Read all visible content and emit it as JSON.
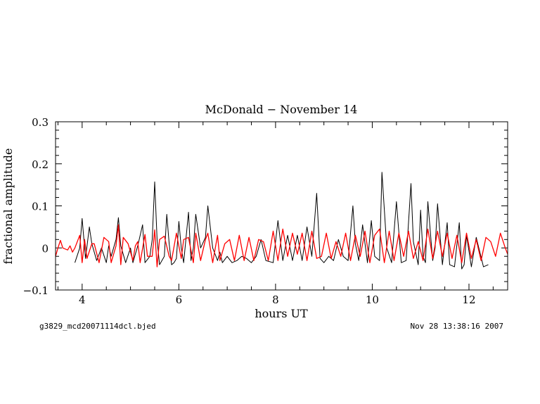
{
  "chart_data": {
    "type": "line",
    "title": "McDonald − November 14",
    "xlabel": "hours UT",
    "ylabel": "fractional amplitude",
    "xlim": [
      3.45,
      12.8
    ],
    "ylim": [
      -0.1,
      0.3
    ],
    "xticks": [
      4,
      6,
      8,
      10,
      12
    ],
    "yticks": [
      -0.1,
      0,
      0.1,
      0.2,
      0.3
    ],
    "xtick_labels": [
      "4",
      "6",
      "8",
      "10",
      "12"
    ],
    "ytick_labels": [
      "−0.1",
      "0",
      "0.1",
      "0.2",
      "0.3"
    ],
    "grid": false,
    "series": [
      {
        "color": "#000000",
        "x": [
          3.85,
          3.95,
          4.0,
          4.07,
          4.15,
          4.2,
          4.3,
          4.4,
          4.5,
          4.55,
          4.6,
          4.7,
          4.75,
          4.8,
          4.9,
          5.0,
          5.05,
          5.15,
          5.25,
          5.3,
          5.4,
          5.45,
          5.5,
          5.55,
          5.6,
          5.7,
          5.75,
          5.8,
          5.85,
          5.9,
          5.95,
          6.0,
          6.05,
          6.1,
          6.2,
          6.25,
          6.3,
          6.35,
          6.45,
          6.55,
          6.6,
          6.7,
          6.8,
          6.85,
          6.9,
          7.0,
          7.1,
          7.2,
          7.3,
          7.4,
          7.5,
          7.6,
          7.7,
          7.8,
          7.95,
          8.05,
          8.15,
          8.25,
          8.35,
          8.45,
          8.55,
          8.65,
          8.75,
          8.85,
          8.92,
          9.0,
          9.1,
          9.2,
          9.3,
          9.4,
          9.5,
          9.6,
          9.65,
          9.72,
          9.8,
          9.9,
          9.98,
          10.05,
          10.15,
          10.2,
          10.3,
          10.4,
          10.5,
          10.6,
          10.7,
          10.8,
          10.85,
          10.95,
          11.0,
          11.05,
          11.1,
          11.15,
          11.25,
          11.3,
          11.35,
          11.45,
          11.55,
          11.6,
          11.7,
          11.8,
          11.85,
          11.9,
          11.95,
          12.05,
          12.15,
          12.3,
          12.4
        ],
        "y": [
          -0.035,
          0.0,
          0.07,
          -0.025,
          0.05,
          0.01,
          -0.03,
          0.0,
          -0.035,
          0.005,
          -0.02,
          0.02,
          0.072,
          0.005,
          -0.035,
          0.0,
          -0.035,
          0.005,
          0.055,
          -0.035,
          -0.02,
          0.02,
          0.157,
          0.02,
          -0.04,
          -0.02,
          0.08,
          0.01,
          -0.04,
          -0.035,
          -0.025,
          0.063,
          0.0,
          -0.035,
          0.085,
          -0.03,
          0.0,
          0.08,
          0.0,
          0.025,
          0.1,
          0.0,
          -0.03,
          -0.01,
          -0.035,
          -0.02,
          -0.035,
          -0.03,
          -0.02,
          -0.025,
          -0.035,
          -0.02,
          0.02,
          -0.03,
          -0.035,
          0.065,
          -0.03,
          0.03,
          -0.03,
          0.03,
          -0.03,
          0.05,
          -0.02,
          0.13,
          -0.025,
          -0.035,
          -0.02,
          -0.03,
          0.02,
          -0.02,
          -0.03,
          0.1,
          0.01,
          -0.03,
          0.055,
          -0.035,
          0.065,
          -0.02,
          -0.03,
          0.18,
          0.0,
          -0.035,
          0.11,
          -0.035,
          -0.03,
          0.153,
          0.015,
          -0.04,
          0.09,
          -0.02,
          -0.035,
          0.11,
          -0.03,
          0.0,
          0.105,
          -0.04,
          0.06,
          -0.04,
          -0.045,
          0.06,
          -0.05,
          -0.04,
          0.03,
          -0.045,
          0.025,
          -0.045,
          -0.04
        ]
      },
      {
        "color": "#ff0000",
        "x": [
          3.45,
          3.5,
          3.55,
          3.6,
          3.7,
          3.75,
          3.8,
          3.85,
          3.95,
          4.0,
          4.05,
          4.1,
          4.2,
          4.25,
          4.35,
          4.45,
          4.55,
          4.6,
          4.7,
          4.75,
          4.8,
          4.85,
          4.95,
          5.05,
          5.1,
          5.15,
          5.2,
          5.3,
          5.35,
          5.45,
          5.5,
          5.55,
          5.6,
          5.7,
          5.8,
          5.85,
          5.95,
          6.05,
          6.1,
          6.2,
          6.3,
          6.35,
          6.45,
          6.55,
          6.6,
          6.7,
          6.8,
          6.85,
          6.95,
          7.05,
          7.15,
          7.25,
          7.35,
          7.45,
          7.55,
          7.65,
          7.75,
          7.85,
          7.95,
          8.05,
          8.15,
          8.25,
          8.35,
          8.45,
          8.55,
          8.65,
          8.75,
          8.85,
          8.95,
          9.05,
          9.15,
          9.25,
          9.35,
          9.45,
          9.55,
          9.65,
          9.75,
          9.85,
          9.95,
          10.05,
          10.15,
          10.25,
          10.35,
          10.45,
          10.55,
          10.65,
          10.75,
          10.85,
          10.95,
          11.05,
          11.15,
          11.25,
          11.35,
          11.45,
          11.55,
          11.65,
          11.75,
          11.85,
          11.95,
          12.05,
          12.15,
          12.25,
          12.35,
          12.45,
          12.55,
          12.65,
          12.75,
          12.8
        ],
        "y": [
          -0.02,
          0.0,
          0.018,
          0.0,
          -0.005,
          0.005,
          -0.01,
          0.0,
          0.03,
          -0.035,
          0.02,
          -0.025,
          0.01,
          0.01,
          -0.035,
          0.025,
          0.015,
          -0.035,
          0.005,
          0.055,
          -0.04,
          0.025,
          0.01,
          -0.03,
          0.005,
          0.015,
          -0.035,
          0.032,
          -0.02,
          -0.02,
          0.043,
          -0.045,
          0.02,
          0.028,
          -0.02,
          -0.03,
          0.035,
          -0.025,
          0.02,
          0.025,
          -0.035,
          0.035,
          -0.03,
          0.02,
          0.035,
          -0.035,
          0.03,
          -0.03,
          0.01,
          0.02,
          -0.03,
          0.03,
          -0.03,
          0.025,
          -0.03,
          0.02,
          0.015,
          -0.03,
          0.04,
          -0.03,
          0.045,
          -0.02,
          0.035,
          -0.015,
          0.035,
          -0.03,
          0.04,
          -0.025,
          -0.02,
          0.035,
          -0.025,
          0.015,
          -0.02,
          0.035,
          -0.03,
          0.03,
          -0.02,
          0.04,
          -0.035,
          0.03,
          0.045,
          -0.035,
          0.04,
          -0.03,
          0.035,
          -0.02,
          0.04,
          -0.025,
          0.015,
          -0.03,
          0.045,
          -0.025,
          0.04,
          -0.02,
          0.035,
          -0.025,
          0.03,
          -0.035,
          0.035,
          -0.025,
          0.02,
          -0.03,
          0.025,
          0.015,
          -0.02,
          0.035,
          0.0,
          -0.015
        ]
      }
    ]
  },
  "footer": {
    "file_name": "g3829_mcd20071114dcl.bjed",
    "timestamp": "Nov 28 13:38:16 2007"
  }
}
